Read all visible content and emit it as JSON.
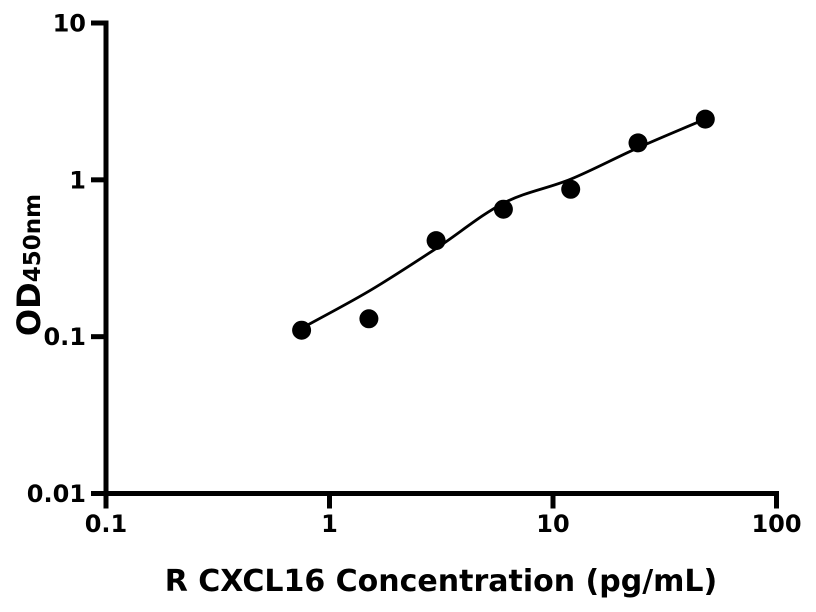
{
  "figure": {
    "background": "#ffffff",
    "foreground": "#000000"
  },
  "chart_data": {
    "type": "scatter",
    "title": "",
    "xlabel": "R CXCL16 Concentration (pg/mL)",
    "ylabel_main": "OD",
    "ylabel_sub": "450nm",
    "x_scale": "log",
    "y_scale": "log",
    "xlim": [
      0.1,
      100
    ],
    "ylim": [
      0.01,
      10
    ],
    "grid": false,
    "legend": false,
    "x_ticks": [
      {
        "v": 0.1,
        "label": "0.1"
      },
      {
        "v": 1,
        "label": "1"
      },
      {
        "v": 10,
        "label": "10"
      },
      {
        "v": 100,
        "label": "100"
      }
    ],
    "y_ticks": [
      {
        "v": 10,
        "label": "10"
      },
      {
        "v": 1,
        "label": "1"
      },
      {
        "v": 0.1,
        "label": "0.1"
      },
      {
        "v": 0.01,
        "label": "0.01"
      }
    ],
    "series": [
      {
        "marker": "filled-circle",
        "marker_radius": 9.5,
        "color": "#000000",
        "points": [
          [
            0.75,
            0.11
          ],
          [
            1.5,
            0.13
          ],
          [
            3,
            0.41
          ],
          [
            6,
            0.65
          ],
          [
            12,
            0.87
          ],
          [
            24,
            1.72
          ],
          [
            48,
            2.44
          ]
        ]
      }
    ],
    "fit_curve": {
      "color": "#000000",
      "stroke_width": 2.8,
      "points": [
        [
          0.74,
          0.112
        ],
        [
          1.5,
          0.195
        ],
        [
          3,
          0.365
        ],
        [
          6,
          0.71
        ],
        [
          12,
          1.01
        ],
        [
          24,
          1.6
        ],
        [
          48,
          2.44
        ]
      ]
    }
  }
}
